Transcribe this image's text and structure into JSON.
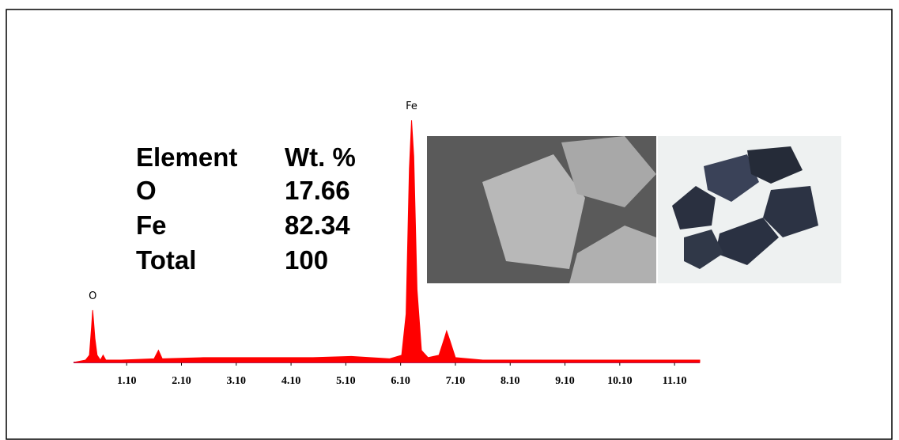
{
  "chart_data": {
    "type": "area",
    "color": "#ff0000",
    "x": [
      0.13,
      0.35,
      0.42,
      0.46,
      0.48,
      0.52,
      0.56,
      0.62,
      0.67,
      0.72,
      1.0,
      1.6,
      1.68,
      1.75,
      2.5,
      3.5,
      4.5,
      5.2,
      5.9,
      6.12,
      6.2,
      6.26,
      6.3,
      6.34,
      6.4,
      6.48,
      6.6,
      6.8,
      6.9,
      6.94,
      7.0,
      7.1,
      7.6,
      9.0,
      11.56
    ],
    "values": [
      0,
      1,
      3,
      15,
      21.6,
      10,
      3,
      1,
      3,
      1,
      1,
      1.5,
      5,
      1.5,
      2,
      2,
      2,
      2.5,
      1.5,
      3,
      20,
      80,
      100,
      85,
      30,
      5,
      2,
      3,
      10,
      13,
      9,
      2,
      1,
      1,
      1
    ],
    "xlim": [
      0.13,
      11.56
    ],
    "ylim": [
      0,
      100
    ],
    "xticks": [
      {
        "value": 1.1,
        "label": "1.10"
      },
      {
        "value": 2.1,
        "label": "2.10"
      },
      {
        "value": 3.1,
        "label": "3.10"
      },
      {
        "value": 4.1,
        "label": "4.10"
      },
      {
        "value": 5.1,
        "label": "5.10"
      },
      {
        "value": 6.1,
        "label": "6.10"
      },
      {
        "value": 7.1,
        "label": "7.10"
      },
      {
        "value": 8.1,
        "label": "8.10"
      },
      {
        "value": 9.1,
        "label": "9.10"
      },
      {
        "value": 10.1,
        "label": "10.10"
      },
      {
        "value": 11.1,
        "label": "11.10"
      }
    ],
    "annotations": [
      "Fe",
      "O"
    ]
  },
  "table": {
    "header": [
      "Element",
      "Wt. %"
    ],
    "rows": [
      [
        "O",
        "17.66"
      ],
      [
        "Fe",
        "82.34"
      ],
      [
        "Total",
        "100"
      ]
    ]
  }
}
